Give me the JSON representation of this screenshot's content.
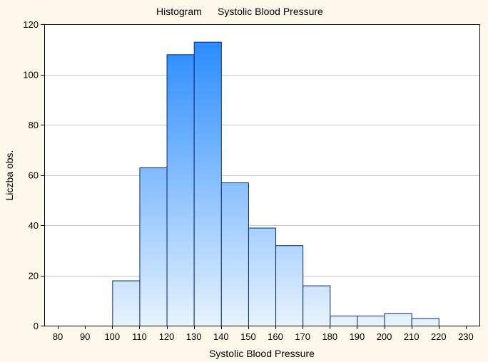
{
  "chart_data": {
    "type": "bar",
    "title_prefix": "Histogram",
    "title": "Systolic Blood Pressure",
    "xlabel": "Systolic Blood Pressure",
    "ylabel": "Liczba obs.",
    "bins": [
      {
        "from": 100,
        "to": 110,
        "count": 18
      },
      {
        "from": 110,
        "to": 120,
        "count": 63
      },
      {
        "from": 120,
        "to": 130,
        "count": 108
      },
      {
        "from": 130,
        "to": 140,
        "count": 113
      },
      {
        "from": 140,
        "to": 150,
        "count": 57
      },
      {
        "from": 150,
        "to": 160,
        "count": 39
      },
      {
        "from": 160,
        "to": 170,
        "count": 32
      },
      {
        "from": 170,
        "to": 180,
        "count": 16
      },
      {
        "from": 180,
        "to": 190,
        "count": 4
      },
      {
        "from": 190,
        "to": 200,
        "count": 4
      },
      {
        "from": 200,
        "to": 210,
        "count": 5
      },
      {
        "from": 210,
        "to": 220,
        "count": 3
      }
    ],
    "xlim": [
      75,
      235
    ],
    "ylim": [
      0,
      120
    ],
    "x_ticks": [
      "80",
      "90",
      "100",
      "110",
      "120",
      "130",
      "140",
      "150",
      "160",
      "170",
      "180",
      "190",
      "200",
      "210",
      "220",
      "230"
    ],
    "y_ticks": [
      "0",
      "20",
      "40",
      "60",
      "80",
      "100",
      "120"
    ],
    "grid": true,
    "colors": {
      "bar_top": "#1e86ff",
      "bar_bottom": "#e8f3fd",
      "bar_edge": "#0a2a6e",
      "grid": "#c8c8c8",
      "plot_background": "#ffffff",
      "frame": "#000000"
    }
  }
}
